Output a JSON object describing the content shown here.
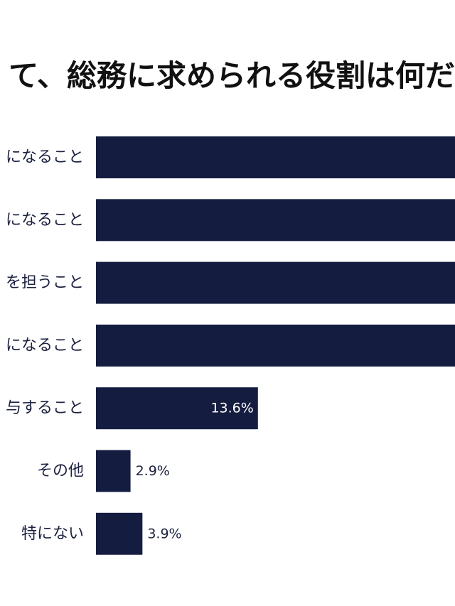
{
  "chart_data": {
    "type": "bar",
    "orientation": "horizontal",
    "title": "て、総務に求められる役割は何だ",
    "categories": [
      "になること",
      "になること",
      "を担うこと",
      "になること",
      "与すること",
      "その他",
      "特にない"
    ],
    "values": [
      null,
      null,
      null,
      null,
      13.6,
      2.9,
      3.9
    ],
    "value_labels": [
      "",
      "",
      "",
      "",
      "13.6%",
      "2.9%",
      "3.9%"
    ],
    "unit": "%",
    "xlim": [
      0,
      20.8
    ],
    "bar_color": "#141c40",
    "inside_label_color": "#ffffff",
    "outside_label_color": "#1c2240",
    "grid": false,
    "legend": "none"
  }
}
